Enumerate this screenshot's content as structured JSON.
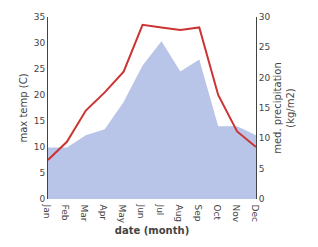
{
  "chart_data": {
    "type": "line",
    "categories": [
      "Jan",
      "Feb",
      "Mar",
      "Apr",
      "May",
      "Jun",
      "Jul",
      "Aug",
      "Sep",
      "Oct",
      "Nov",
      "Dec"
    ],
    "series": [
      {
        "type": "area",
        "axis": "y2",
        "color": "#b8c4e8",
        "values": [
          8.5,
          8.5,
          10.5,
          11.5,
          16.0,
          22.0,
          26.0,
          21.0,
          23.0,
          12.0,
          12.0,
          10.5
        ]
      },
      {
        "type": "line",
        "color": "#cc3333",
        "values": [
          7.5,
          11.0,
          17.0,
          20.5,
          24.5,
          33.5,
          33.0,
          32.5,
          33.0,
          20.0,
          13.0,
          10.0
        ]
      }
    ],
    "xlabel": "date (month)",
    "ylabel": "max temp (C)",
    "y2label": "med. precipitation\n(kg/m2)",
    "ylim": [
      0,
      35
    ],
    "yticks": [
      0,
      5,
      10,
      15,
      20,
      25,
      30,
      35
    ],
    "y2lim": [
      0,
      30
    ],
    "y2ticks": [
      0,
      5,
      10,
      15,
      20,
      25,
      30
    ],
    "grid": false
  }
}
